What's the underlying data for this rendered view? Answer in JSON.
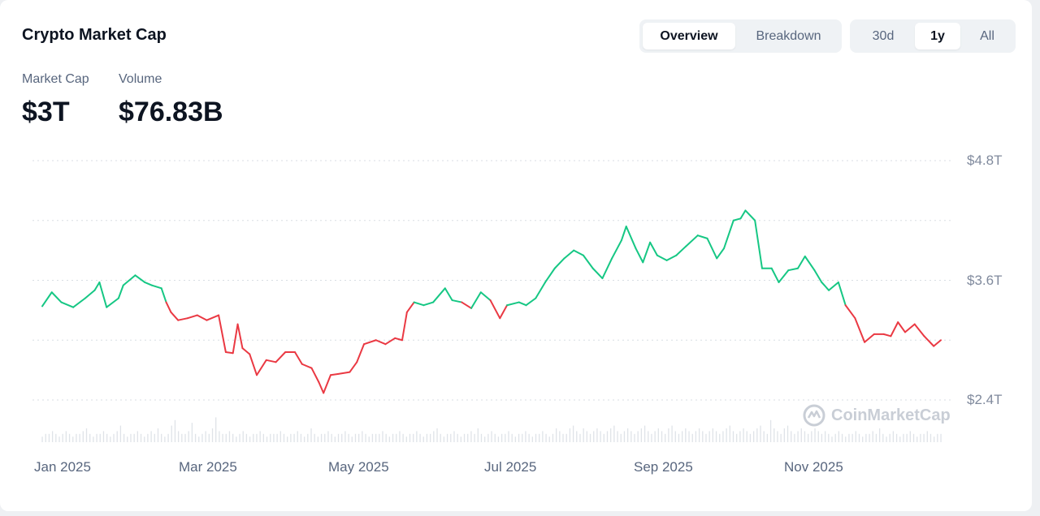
{
  "header": {
    "title": "Crypto Market Cap"
  },
  "view_toggle": {
    "overview": "Overview",
    "breakdown": "Breakdown",
    "active": "Overview"
  },
  "range_toggle": {
    "r30d": "30d",
    "r1y": "1y",
    "all": "All",
    "active": "1y"
  },
  "stats": {
    "market_cap_label": "Market Cap",
    "market_cap_value": "$3T",
    "volume_label": "Volume",
    "volume_value": "$76.83B"
  },
  "watermark": {
    "text": "CoinMarketCap",
    "icon": "coinmarketcap-logo-icon"
  },
  "colors": {
    "up": "#16c784",
    "down": "#ea3943",
    "grid": "#d8dde3",
    "volume": "#dfe3e8"
  },
  "chart_data": {
    "type": "line",
    "title": "",
    "xlabel": "",
    "ylabel": "",
    "y_unit": "T",
    "ylim": [
      2.0,
      5.0
    ],
    "ytick_values": [
      2.4,
      3.0,
      3.6,
      4.2,
      4.8
    ],
    "y_tick_labels": [
      {
        "value": 4.8,
        "label": "$4.8T"
      },
      {
        "value": 3.6,
        "label": "$3.6T"
      },
      {
        "value": 2.4,
        "label": "$2.4T"
      }
    ],
    "x_tick_labels": [
      {
        "date": "2025-01-01",
        "label": "Jan 2025"
      },
      {
        "date": "2025-03-01",
        "label": "Mar 2025"
      },
      {
        "date": "2025-05-01",
        "label": "May 2025"
      },
      {
        "date": "2025-07-01",
        "label": "Jul 2025"
      },
      {
        "date": "2025-09-01",
        "label": "Sep 2025"
      },
      {
        "date": "2025-11-01",
        "label": "Nov 2025"
      }
    ],
    "baseline": 3.35,
    "grid": true,
    "legend": "none",
    "series": [
      {
        "points": [
          [
            "2024-12-12",
            3.34
          ],
          [
            "2024-12-16",
            3.48
          ],
          [
            "2024-12-20",
            3.38
          ],
          [
            "2024-12-25",
            3.33
          ],
          [
            "2024-12-30",
            3.42
          ],
          [
            "2025-01-03",
            3.5
          ],
          [
            "2025-01-05",
            3.58
          ],
          [
            "2025-01-08",
            3.33
          ],
          [
            "2025-01-13",
            3.42
          ],
          [
            "2025-01-15",
            3.55
          ],
          [
            "2025-01-20",
            3.65
          ],
          [
            "2025-01-24",
            3.58
          ],
          [
            "2025-01-27",
            3.55
          ],
          [
            "2025-01-31",
            3.52
          ],
          [
            "2025-02-02",
            3.38
          ],
          [
            "2025-02-04",
            3.28
          ],
          [
            "2025-02-07",
            3.2
          ],
          [
            "2025-02-11",
            3.22
          ],
          [
            "2025-02-15",
            3.25
          ],
          [
            "2025-02-19",
            3.2
          ],
          [
            "2025-02-24",
            3.25
          ],
          [
            "2025-02-27",
            2.88
          ],
          [
            "2025-03-02",
            2.87
          ],
          [
            "2025-03-04",
            3.16
          ],
          [
            "2025-03-06",
            2.92
          ],
          [
            "2025-03-09",
            2.86
          ],
          [
            "2025-03-12",
            2.65
          ],
          [
            "2025-03-16",
            2.8
          ],
          [
            "2025-03-20",
            2.78
          ],
          [
            "2025-03-24",
            2.88
          ],
          [
            "2025-03-28",
            2.88
          ],
          [
            "2025-03-31",
            2.76
          ],
          [
            "2025-04-04",
            2.72
          ],
          [
            "2025-04-07",
            2.58
          ],
          [
            "2025-04-09",
            2.47
          ],
          [
            "2025-04-12",
            2.65
          ],
          [
            "2025-04-15",
            2.66
          ],
          [
            "2025-04-20",
            2.68
          ],
          [
            "2025-04-23",
            2.78
          ],
          [
            "2025-04-26",
            2.96
          ],
          [
            "2025-05-01",
            3.0
          ],
          [
            "2025-05-05",
            2.96
          ],
          [
            "2025-05-09",
            3.02
          ],
          [
            "2025-05-12",
            3.0
          ],
          [
            "2025-05-14",
            3.28
          ],
          [
            "2025-05-17",
            3.38
          ],
          [
            "2025-05-21",
            3.35
          ],
          [
            "2025-05-25",
            3.38
          ],
          [
            "2025-05-30",
            3.52
          ],
          [
            "2025-06-02",
            3.4
          ],
          [
            "2025-06-06",
            3.38
          ],
          [
            "2025-06-10",
            3.32
          ],
          [
            "2025-06-14",
            3.48
          ],
          [
            "2025-06-18",
            3.4
          ],
          [
            "2025-06-22",
            3.22
          ],
          [
            "2025-06-25",
            3.35
          ],
          [
            "2025-06-30",
            3.38
          ],
          [
            "2025-07-03",
            3.35
          ],
          [
            "2025-07-07",
            3.42
          ],
          [
            "2025-07-11",
            3.58
          ],
          [
            "2025-07-15",
            3.72
          ],
          [
            "2025-07-19",
            3.82
          ],
          [
            "2025-07-23",
            3.9
          ],
          [
            "2025-07-27",
            3.85
          ],
          [
            "2025-07-31",
            3.72
          ],
          [
            "2025-08-04",
            3.62
          ],
          [
            "2025-08-08",
            3.82
          ],
          [
            "2025-08-12",
            4.0
          ],
          [
            "2025-08-14",
            4.14
          ],
          [
            "2025-08-18",
            3.92
          ],
          [
            "2025-08-21",
            3.78
          ],
          [
            "2025-08-24",
            3.98
          ],
          [
            "2025-08-27",
            3.85
          ],
          [
            "2025-08-31",
            3.8
          ],
          [
            "2025-09-04",
            3.85
          ],
          [
            "2025-09-08",
            3.94
          ],
          [
            "2025-09-13",
            4.05
          ],
          [
            "2025-09-17",
            4.02
          ],
          [
            "2025-09-21",
            3.82
          ],
          [
            "2025-09-24",
            3.92
          ],
          [
            "2025-09-28",
            4.2
          ],
          [
            "2025-10-01",
            4.22
          ],
          [
            "2025-10-03",
            4.3
          ],
          [
            "2025-10-07",
            4.2
          ],
          [
            "2025-10-10",
            3.72
          ],
          [
            "2025-10-14",
            3.72
          ],
          [
            "2025-10-17",
            3.58
          ],
          [
            "2025-10-21",
            3.7
          ],
          [
            "2025-10-25",
            3.72
          ],
          [
            "2025-10-28",
            3.84
          ],
          [
            "2025-11-01",
            3.7
          ],
          [
            "2025-11-04",
            3.58
          ],
          [
            "2025-11-07",
            3.5
          ],
          [
            "2025-11-11",
            3.58
          ],
          [
            "2025-11-14",
            3.35
          ],
          [
            "2025-11-18",
            3.22
          ],
          [
            "2025-11-22",
            2.98
          ],
          [
            "2025-11-26",
            3.06
          ],
          [
            "2025-11-30",
            3.06
          ],
          [
            "2025-12-03",
            3.04
          ],
          [
            "2025-12-06",
            3.18
          ],
          [
            "2025-12-09",
            3.08
          ],
          [
            "2025-12-13",
            3.16
          ],
          [
            "2025-12-17",
            3.04
          ],
          [
            "2025-12-21",
            2.94
          ],
          [
            "2025-12-24",
            3.0
          ]
        ]
      }
    ],
    "volume_bars": [
      2,
      3,
      3,
      4,
      3,
      2,
      3,
      4,
      3,
      2,
      3,
      3,
      4,
      5,
      3,
      2,
      3,
      3,
      4,
      3,
      2,
      3,
      4,
      6,
      3,
      2,
      3,
      3,
      4,
      3,
      2,
      3,
      4,
      3,
      5,
      3,
      2,
      3,
      6,
      8,
      4,
      3,
      3,
      4,
      7,
      3,
      2,
      3,
      4,
      3,
      5,
      9,
      4,
      3,
      3,
      4,
      3,
      2,
      3,
      4,
      3,
      2,
      3,
      3,
      4,
      3,
      2,
      3,
      3,
      3,
      4,
      3,
      2,
      3,
      3,
      4,
      3,
      2,
      3,
      5,
      3,
      2,
      3,
      3,
      4,
      3,
      2,
      3,
      3,
      4,
      3,
      2,
      3,
      3,
      4,
      3,
      2,
      3,
      3,
      3,
      4,
      3,
      2,
      3,
      3,
      4,
      3,
      2,
      3,
      3,
      4,
      3,
      2,
      3,
      3,
      4,
      5,
      3,
      2,
      3,
      3,
      4,
      3,
      2,
      3,
      3,
      4,
      3,
      5,
      3,
      2,
      3,
      4,
      3,
      2,
      3,
      3,
      4,
      3,
      2,
      3,
      3,
      4,
      3,
      2,
      3,
      3,
      4,
      3,
      2,
      3,
      5,
      4,
      3,
      3,
      5,
      6,
      4,
      3,
      5,
      4,
      3,
      4,
      5,
      4,
      3,
      4,
      5,
      6,
      4,
      3,
      4,
      5,
      4,
      3,
      4,
      5,
      6,
      4,
      3,
      4,
      5,
      4,
      3,
      5,
      6,
      4,
      3,
      4,
      5,
      4,
      3,
      4,
      5,
      4,
      3,
      4,
      5,
      4,
      3,
      4,
      5,
      6,
      4,
      3,
      4,
      5,
      4,
      3,
      4,
      5,
      6,
      4,
      3,
      8,
      5,
      4,
      3,
      5,
      6,
      4,
      3,
      4,
      5,
      4,
      3,
      4,
      5,
      4,
      3,
      4,
      3,
      2,
      3,
      4,
      3,
      2,
      3,
      3,
      4,
      3,
      2,
      3,
      3,
      4,
      3,
      5,
      3,
      2,
      3,
      4,
      3,
      2,
      3,
      3,
      4,
      3,
      2,
      3,
      3,
      4,
      3,
      2,
      3,
      3
    ]
  }
}
